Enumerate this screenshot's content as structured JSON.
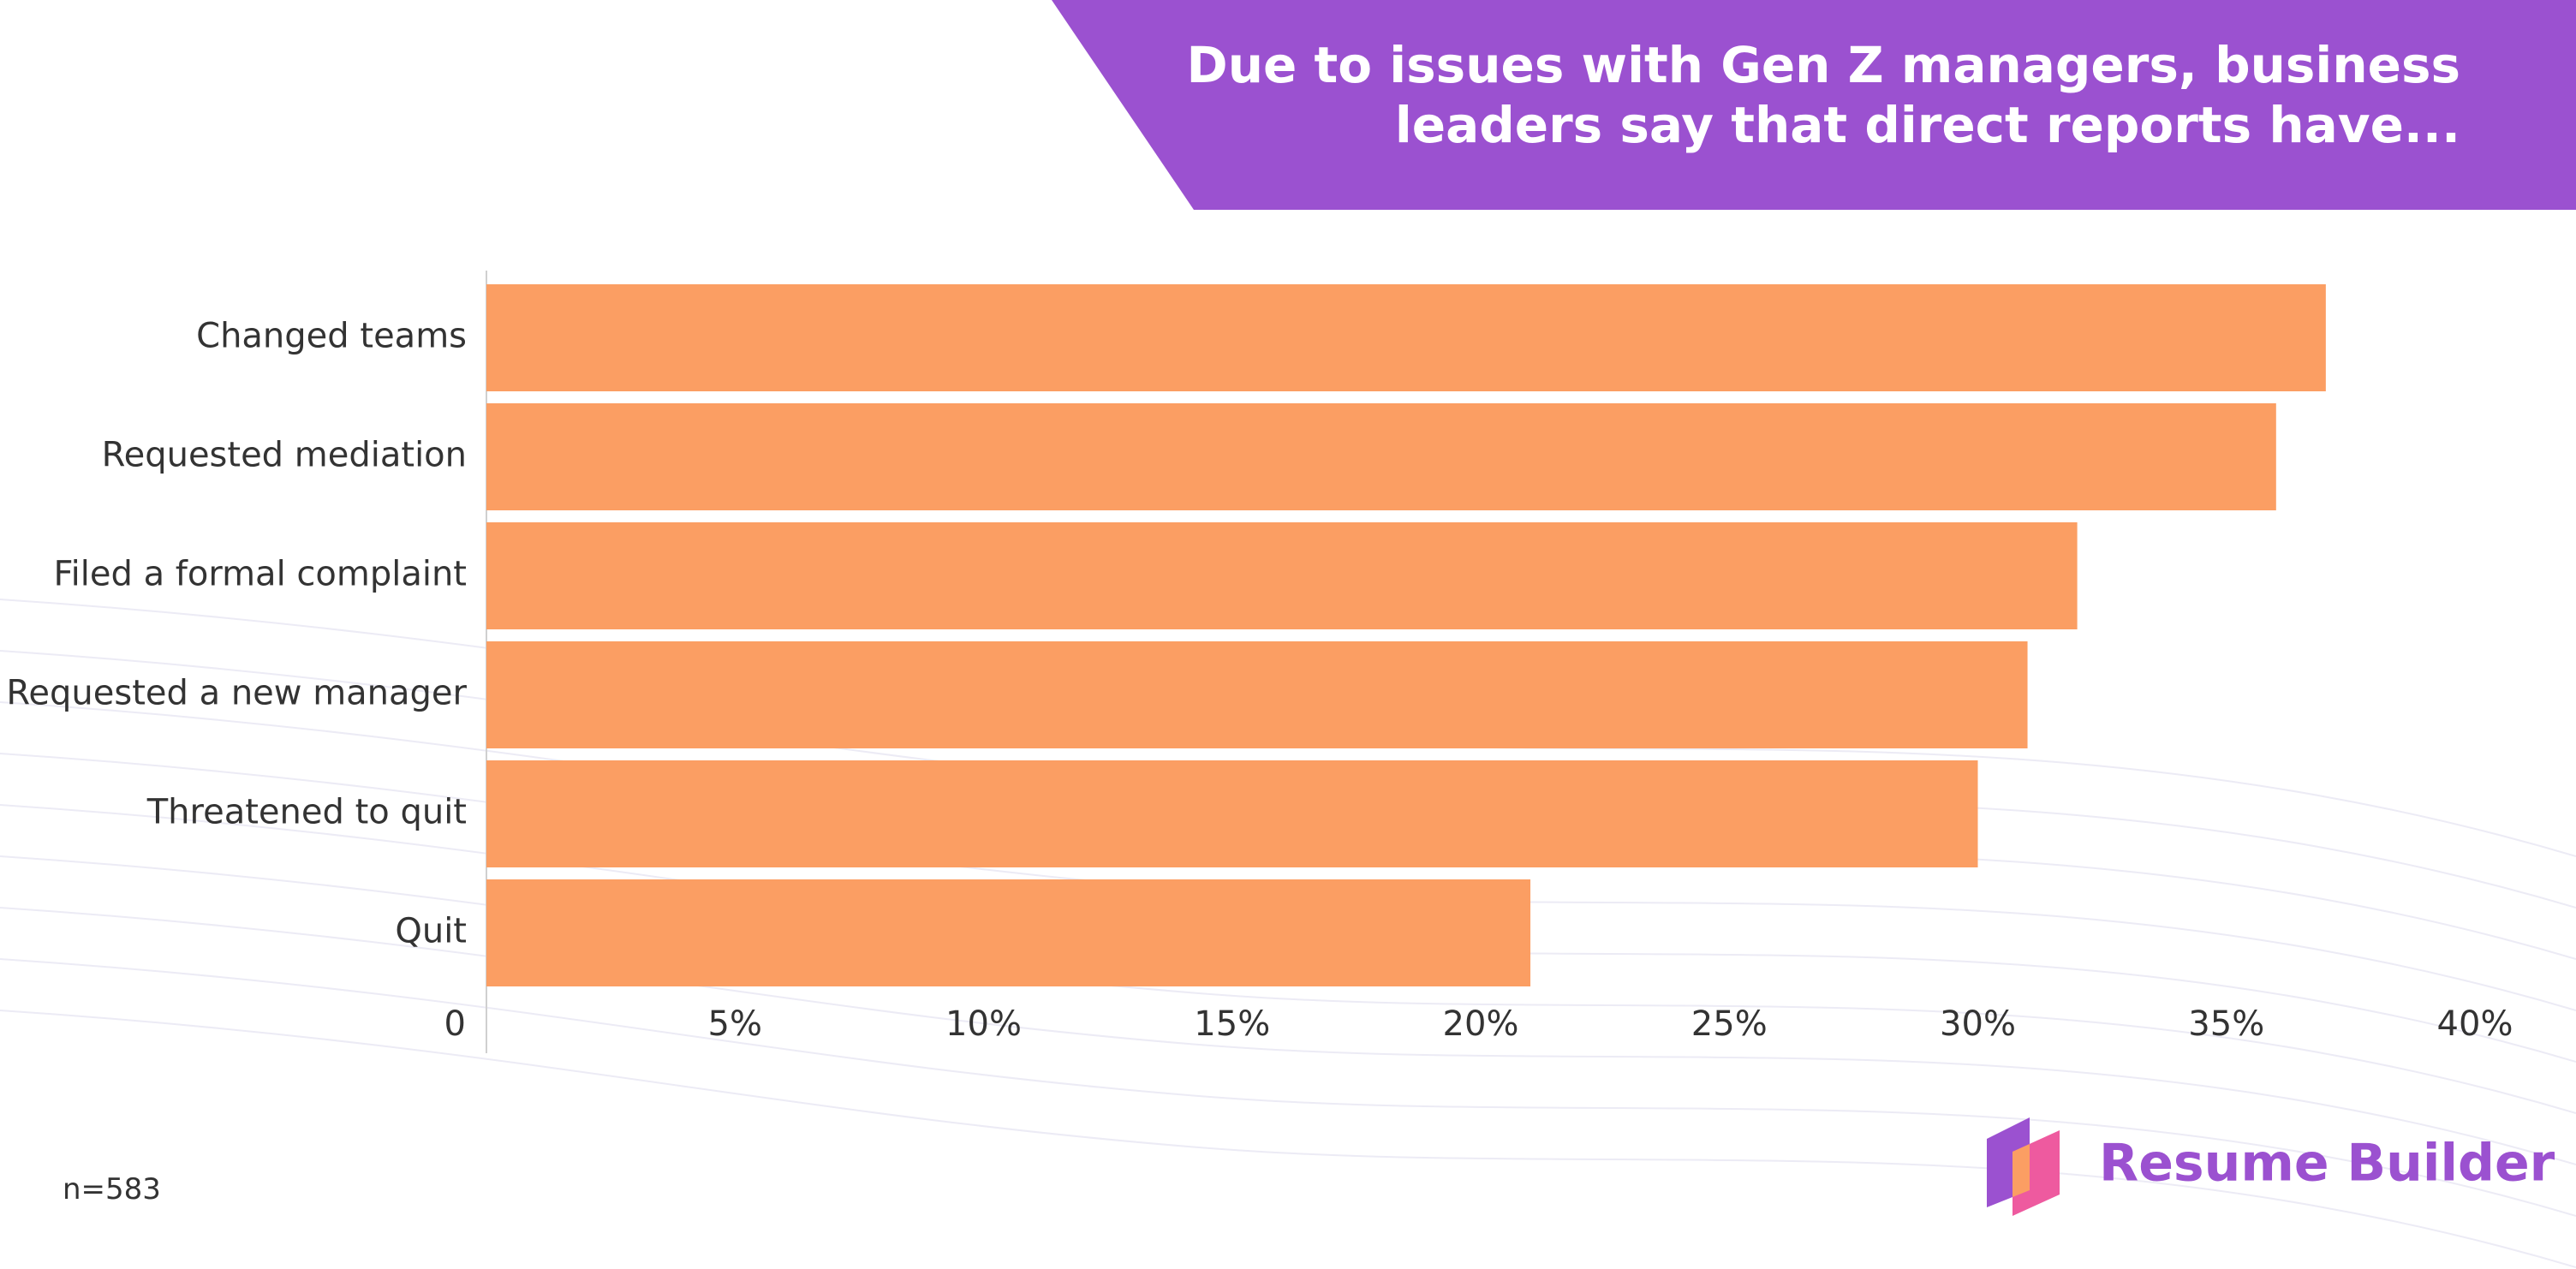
{
  "chart_data": {
    "type": "bar",
    "orientation": "horizontal",
    "title": [
      "Due to issues with Gen Z managers, business",
      "leaders say that direct reports have..."
    ],
    "categories": [
      "Changed teams",
      "Requested mediation",
      "Filed a formal complaint",
      "Requested a new manager",
      "Threatened to quit",
      "Quit"
    ],
    "values": [
      37,
      36,
      32,
      31,
      30,
      21
    ],
    "color": "#fb9e63",
    "xlim": [
      0,
      40
    ],
    "xticks": [
      0,
      {
        "value": 5,
        "label": "5%"
      },
      {
        "value": 10,
        "label": "10%"
      },
      {
        "value": 15,
        "label": "15%"
      },
      {
        "value": 20,
        "label": "20%"
      },
      {
        "value": 25,
        "label": "25%"
      },
      {
        "value": 30,
        "label": "30%"
      },
      {
        "value": 35,
        "label": "35%"
      },
      {
        "value": 40,
        "label": "40%"
      }
    ],
    "grid": false,
    "footnote": "n=583",
    "brand": "Resume Builder"
  }
}
